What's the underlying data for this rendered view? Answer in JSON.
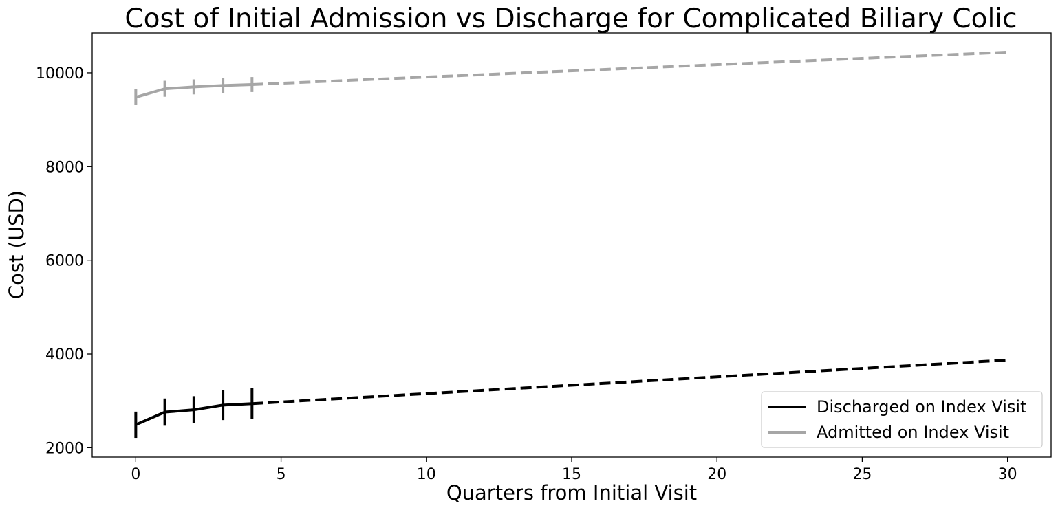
{
  "chart_data": {
    "type": "line",
    "title": "Cost of Initial Admission vs Discharge for Complicated Biliary Colic",
    "xlabel": "Quarters from Initial Visit",
    "ylabel": "Cost (USD)",
    "xlim": [
      -1.5,
      31.5
    ],
    "ylim": [
      1800,
      10850
    ],
    "xticks": [
      0,
      5,
      10,
      15,
      20,
      25,
      30
    ],
    "yticks": [
      2000,
      4000,
      6000,
      8000,
      10000
    ],
    "grid": false,
    "legend_position": "lower-right",
    "series": [
      {
        "name": "Discharged on Index Visit",
        "color": "#000000",
        "observed": {
          "x": [
            0,
            1,
            2,
            3,
            4
          ],
          "y": [
            2490,
            2760,
            2810,
            2910,
            2940
          ],
          "yerr": [
            280,
            290,
            290,
            320,
            330
          ]
        },
        "projection": {
          "x": [
            4,
            30
          ],
          "y": [
            2940,
            3870
          ],
          "style": "dashed"
        }
      },
      {
        "name": "Admitted on Index Visit",
        "color": "#a6a6a6",
        "observed": {
          "x": [
            0,
            1,
            2,
            3,
            4
          ],
          "y": [
            9480,
            9660,
            9700,
            9730,
            9750
          ],
          "yerr": [
            170,
            170,
            160,
            160,
            160
          ]
        },
        "projection": {
          "x": [
            4,
            30
          ],
          "y": [
            9750,
            10440
          ],
          "style": "dashed"
        }
      }
    ]
  }
}
